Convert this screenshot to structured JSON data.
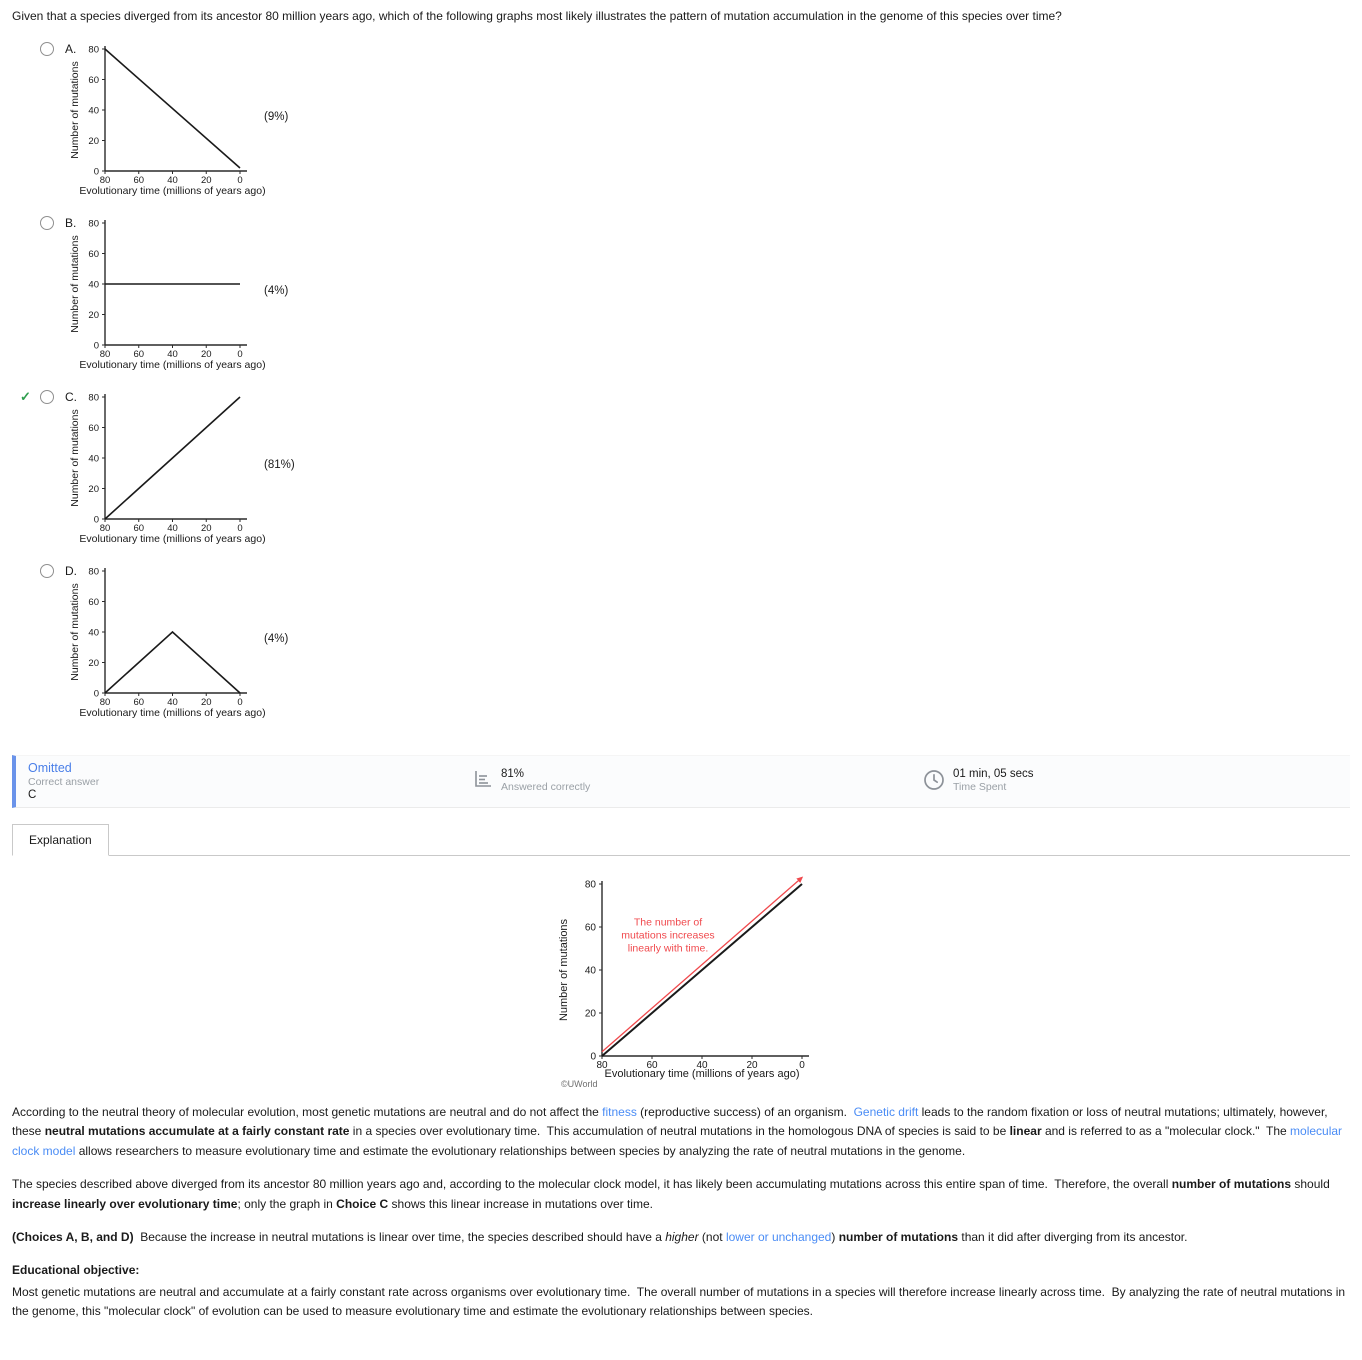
{
  "question": "Given that a species diverged from its ancestor 80 million years ago, which of the following graphs most likely illustrates the pattern of mutation accumulation in the genome of this species over time?",
  "options": [
    {
      "letter": "A.",
      "percent": "(9%)",
      "correct": false
    },
    {
      "letter": "B.",
      "percent": "(4%)",
      "correct": false
    },
    {
      "letter": "C.",
      "percent": "(81%)",
      "correct": true
    },
    {
      "letter": "D.",
      "percent": "(4%)",
      "correct": false
    }
  ],
  "result_bar": {
    "status": "Omitted",
    "correct_answer_label": "Correct answer",
    "correct_answer": "C",
    "percent_correct": "81%",
    "answered_label": "Answered correctly",
    "time": "01 min, 05 secs",
    "time_label": "Time Spent"
  },
  "tabs": {
    "explanation": "Explanation"
  },
  "figure_source": "©UWorld",
  "icons": {
    "stats": "answered-correctly-stats-icon",
    "clock": "time-spent-clock-icon",
    "check": "correct-answer-checkmark"
  },
  "colors": {
    "link_blue": "#4a8cf5",
    "status_blue": "#4a7fe8",
    "correct_green": "#2f9e4e",
    "annotation_red": "#f0494d",
    "result_bar_border": "#6a93ea",
    "line_black": "#1a1a1a"
  },
  "chart_data": [
    {
      "id": "A",
      "type": "line",
      "xlabel": "Evolutionary time (millions of years ago)",
      "ylabel": "Number of mutations",
      "xlim": [
        80,
        0
      ],
      "ylim": [
        0,
        80
      ],
      "x_ticks": [
        80,
        60,
        40,
        20,
        0
      ],
      "y_ticks": [
        0,
        20,
        40,
        60,
        80
      ],
      "legend": "none",
      "grid": false,
      "series": [
        {
          "name": "mutations-decreasing",
          "color": "#1a1a1a",
          "width": 1.6,
          "points": [
            [
              80,
              80
            ],
            [
              0,
              2
            ]
          ]
        }
      ]
    },
    {
      "id": "B",
      "type": "line",
      "xlabel": "Evolutionary time (millions of years ago)",
      "ylabel": "Number of mutations",
      "xlim": [
        80,
        0
      ],
      "ylim": [
        0,
        80
      ],
      "x_ticks": [
        80,
        60,
        40,
        20,
        0
      ],
      "y_ticks": [
        0,
        20,
        40,
        60,
        80
      ],
      "legend": "none",
      "grid": false,
      "series": [
        {
          "name": "mutations-constant",
          "color": "#1a1a1a",
          "width": 1.6,
          "points": [
            [
              80,
              40
            ],
            [
              0,
              40
            ]
          ]
        }
      ]
    },
    {
      "id": "C",
      "type": "line",
      "xlabel": "Evolutionary time (millions of years ago)",
      "ylabel": "Number of mutations",
      "xlim": [
        80,
        0
      ],
      "ylim": [
        0,
        80
      ],
      "x_ticks": [
        80,
        60,
        40,
        20,
        0
      ],
      "y_ticks": [
        0,
        20,
        40,
        60,
        80
      ],
      "legend": "none",
      "grid": false,
      "series": [
        {
          "name": "mutations-linear-increase",
          "color": "#1a1a1a",
          "width": 1.6,
          "points": [
            [
              80,
              0
            ],
            [
              0,
              80
            ]
          ]
        }
      ]
    },
    {
      "id": "D",
      "type": "line",
      "xlabel": "Evolutionary time (millions of years ago)",
      "ylabel": "Number of mutations",
      "xlim": [
        80,
        0
      ],
      "ylim": [
        0,
        80
      ],
      "x_ticks": [
        80,
        60,
        40,
        20,
        0
      ],
      "y_ticks": [
        0,
        20,
        40,
        60,
        80
      ],
      "legend": "none",
      "grid": false,
      "series": [
        {
          "name": "mutations-rise-then-fall",
          "color": "#1a1a1a",
          "width": 1.6,
          "points": [
            [
              80,
              0
            ],
            [
              40,
              40
            ],
            [
              0,
              0
            ]
          ]
        }
      ]
    },
    {
      "id": "explanation",
      "type": "line",
      "xlabel": "Evolutionary time (millions of years ago)",
      "ylabel": "Number of mutations",
      "xlim": [
        80,
        0
      ],
      "ylim": [
        0,
        80
      ],
      "x_ticks": [
        80,
        60,
        40,
        20,
        0
      ],
      "y_ticks": [
        0,
        20,
        40,
        60,
        80
      ],
      "legend": "none",
      "grid": false,
      "series": [
        {
          "name": "mutations-linear-increase",
          "color": "#1a1a1a",
          "width": 2,
          "points": [
            [
              80,
              0
            ],
            [
              0,
              80
            ]
          ]
        },
        {
          "name": "trend-arrow",
          "color": "#f0494d",
          "width": 1.3,
          "arrow": true,
          "points": [
            [
              80,
              2
            ],
            [
              0,
              83
            ]
          ]
        }
      ],
      "annotation": {
        "lines": [
          "The number of",
          "mutations increases",
          "linearly with time."
        ],
        "color": "#f0494d",
        "fx": 0.33,
        "fy": 0.24
      }
    }
  ],
  "explanation": {
    "p1": [
      {
        "t": "According to the neutral theory of molecular evolution, most genetic mutations are neutral and do not affect the "
      },
      {
        "t": "fitness",
        "s": "a"
      },
      {
        "t": " (reproductive success) of an organism.  "
      },
      {
        "t": "Genetic drift",
        "s": "a"
      },
      {
        "t": " leads to the random fixation or loss of neutral mutations; ultimately, however, these "
      },
      {
        "t": "neutral mutations accumulate at a fairly constant rate",
        "s": "b"
      },
      {
        "t": " in a species over evolutionary time.  This accumulation of neutral mutations in the homologous DNA of species is said to be "
      },
      {
        "t": "linear",
        "s": "b"
      },
      {
        "t": " and is referred to as a \"molecular clock.\"  The "
      },
      {
        "t": "molecular clock model",
        "s": "a"
      },
      {
        "t": " allows researchers to measure evolutionary time and estimate the evolutionary relationships between species by analyzing the rate of neutral mutations in the genome."
      }
    ],
    "p2": [
      {
        "t": "The species described above diverged from its ancestor 80 million years ago and, according to the molecular clock model, it has likely been accumulating mutations across this entire span of time.  Therefore, the overall "
      },
      {
        "t": "number of mutations",
        "s": "b"
      },
      {
        "t": " should "
      },
      {
        "t": "increase linearly over evolutionary time",
        "s": "b"
      },
      {
        "t": "; only the graph in "
      },
      {
        "t": "Choice C",
        "s": "b"
      },
      {
        "t": " shows this linear increase in mutations over time."
      }
    ],
    "p3": [
      {
        "t": "(Choices A, B, and D)",
        "s": "b"
      },
      {
        "t": "  Because the increase in neutral mutations is linear over time, the species described should have a "
      },
      {
        "t": "higher",
        "s": "i"
      },
      {
        "t": " (not "
      },
      {
        "t": "lower or unchanged",
        "s": "a"
      },
      {
        "t": ") "
      },
      {
        "t": "number of mutations",
        "s": "b"
      },
      {
        "t": " than it did after diverging from its ancestor."
      }
    ],
    "edu_heading": [
      {
        "t": "Educational objective:",
        "s": "b"
      }
    ],
    "edu_body": [
      {
        "t": "Most genetic mutations are neutral and accumulate at a fairly constant rate across organisms over evolutionary time.  The overall number of mutations in a species will therefore increase linearly across time.  By analyzing the rate of neutral mutations in the genome, this \"molecular clock\" of evolution can be used to measure evolutionary time and estimate the evolutionary relationships between species."
      }
    ]
  }
}
